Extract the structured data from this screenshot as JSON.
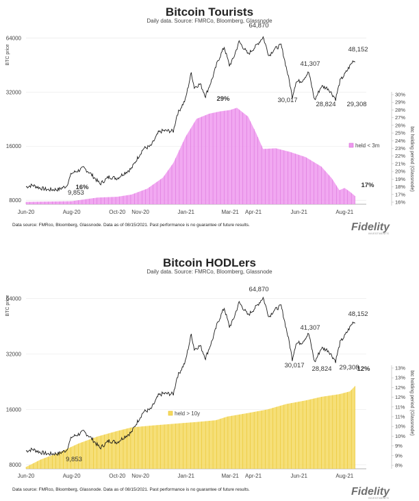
{
  "logo": {
    "text": "Fidelity",
    "subtext": "INVESTMENTS"
  },
  "chart_data": [
    {
      "type": "line",
      "title": "Bitcoin Tourists",
      "subtitle": "Daily data.  Source: FMRCo, Bloomberg, Glassnode",
      "ylabel": "BTC price",
      "y2label": "btc holding period (Glassnode)",
      "footnote": "Data source: FMRco, Bloomberg, Glassnode. Data as of 08/15/2021. Past performance is no guarantee of future results.",
      "y_scale": "log",
      "ylim": [
        7600,
        72000
      ],
      "y_ticks": [
        "8000",
        "16000",
        "32000",
        "64000"
      ],
      "y2lim": [
        15.7,
        30.8
      ],
      "y2_ticks": [
        "16%",
        "17%",
        "18%",
        "19%",
        "20%",
        "21%",
        "22%",
        "23%",
        "24%",
        "25%",
        "26%",
        "27%",
        "28%",
        "29%",
        "30%"
      ],
      "x_labels": [
        "Jun-20",
        "Aug-20",
        "Oct-20",
        "Nov-20",
        "Jan-21",
        "Mar-21",
        "Apr-21",
        "Jun-21",
        "Aug-21"
      ],
      "annotations": [
        "64,870",
        "41,307",
        "48,152",
        "30,017",
        "28,824",
        "29,308",
        "9,853",
        "29%",
        "17%",
        "16%"
      ],
      "legend": {
        "label": "held < 3m",
        "position": "right"
      },
      "colors": {
        "bars": "#ee99ee",
        "bars_edge": "#d86ad8",
        "line": "#1a1a1a",
        "label": "#e070e0"
      },
      "series": [
        {
          "name": "BTC price",
          "kind": "line",
          "points": [
            [
              "2020-06-01",
              9500
            ],
            [
              "2020-06-10",
              9700
            ],
            [
              "2020-06-20",
              9350
            ],
            [
              "2020-07-01",
              9150
            ],
            [
              "2020-07-15",
              9200
            ],
            [
              "2020-07-25",
              9600
            ],
            [
              "2020-08-01",
              11300
            ],
            [
              "2020-08-10",
              11700
            ],
            [
              "2020-08-17",
              12100
            ],
            [
              "2020-08-25",
              11400
            ],
            [
              "2020-09-03",
              10400
            ],
            [
              "2020-09-08",
              9853
            ],
            [
              "2020-09-20",
              10800
            ],
            [
              "2020-10-01",
              10600
            ],
            [
              "2020-10-10",
              11300
            ],
            [
              "2020-10-20",
              12000
            ],
            [
              "2020-10-27",
              13500
            ],
            [
              "2020-11-05",
              15500
            ],
            [
              "2020-11-15",
              16000
            ],
            [
              "2020-11-25",
              19000
            ],
            [
              "2020-12-01",
              19500
            ],
            [
              "2020-12-15",
              19400
            ],
            [
              "2020-12-20",
              24000
            ],
            [
              "2020-12-31",
              29000
            ],
            [
              "2021-01-08",
              41000
            ],
            [
              "2021-01-12",
              34000
            ],
            [
              "2021-01-20",
              35500
            ],
            [
              "2021-01-27",
              30400
            ],
            [
              "2021-02-05",
              38000
            ],
            [
              "2021-02-12",
              47000
            ],
            [
              "2021-02-21",
              57000
            ],
            [
              "2021-02-28",
              45000
            ],
            [
              "2021-03-05",
              49000
            ],
            [
              "2021-03-13",
              61000
            ],
            [
              "2021-03-25",
              52000
            ],
            [
              "2021-04-05",
              58000
            ],
            [
              "2021-04-14",
              64870
            ],
            [
              "2021-04-22",
              51000
            ],
            [
              "2021-04-28",
              55000
            ],
            [
              "2021-05-08",
              58500
            ],
            [
              "2021-05-12",
              50000
            ],
            [
              "2021-05-19",
              37000
            ],
            [
              "2021-05-23",
              30017
            ],
            [
              "2021-05-28",
              36500
            ],
            [
              "2021-06-05",
              37000
            ],
            [
              "2021-06-14",
              41307
            ],
            [
              "2021-06-22",
              28824
            ],
            [
              "2021-07-01",
              34500
            ],
            [
              "2021-07-10",
              33500
            ],
            [
              "2021-07-20",
              29308
            ],
            [
              "2021-07-26",
              37000
            ],
            [
              "2021-08-01",
              40000
            ],
            [
              "2021-08-07",
              44000
            ],
            [
              "2021-08-13",
              48152
            ],
            [
              "2021-08-15",
              47000
            ]
          ]
        },
        {
          "name": "held < 3m",
          "kind": "bars",
          "axis": "right",
          "points": [
            [
              "2020-06-01",
              16.2
            ],
            [
              "2020-08-01",
              16.3
            ],
            [
              "2020-09-05",
              16.8
            ],
            [
              "2020-10-01",
              16.9
            ],
            [
              "2020-10-20",
              17.2
            ],
            [
              "2020-11-10",
              18.0
            ],
            [
              "2020-12-01",
              19.5
            ],
            [
              "2020-12-15",
              21.5
            ],
            [
              "2020-12-31",
              25.0
            ],
            [
              "2021-01-15",
              27.5
            ],
            [
              "2021-02-01",
              28.2
            ],
            [
              "2021-02-15",
              28.5
            ],
            [
              "2021-03-01",
              28.7
            ],
            [
              "2021-03-10",
              29.0
            ],
            [
              "2021-03-25",
              27.8
            ],
            [
              "2021-04-05",
              25.5
            ],
            [
              "2021-04-14",
              23.4
            ],
            [
              "2021-05-01",
              23.5
            ],
            [
              "2021-05-20",
              23.0
            ],
            [
              "2021-06-10",
              22.3
            ],
            [
              "2021-07-01",
              21.0
            ],
            [
              "2021-07-15",
              19.4
            ],
            [
              "2021-07-25",
              17.8
            ],
            [
              "2021-08-01",
              18.1
            ],
            [
              "2021-08-08",
              17.6
            ],
            [
              "2021-08-15",
              17.0
            ]
          ]
        }
      ]
    },
    {
      "type": "line",
      "title": "Bitcoin HODLers",
      "subtitle": "Daily data.  Source: FMRCo, Bloomberg, Glassnode",
      "ylabel": "BTC price",
      "y2label": "btc holding period (Glassnode)",
      "footnote": "Data source: FMRco, Bloomberg, Glassnode. Data as of 08/15/2021. Past performance is no guarantee of future results.",
      "y_scale": "log",
      "ylim": [
        7600,
        72000
      ],
      "y_ticks": [
        "8000",
        "16000",
        "32000",
        "64000"
      ],
      "y2lim": [
        7.7,
        13.3
      ],
      "y2_ticks": [
        "8%",
        "9%",
        "9%",
        "10%",
        "10%",
        "11%",
        "11%",
        "12%",
        "12%",
        "13%",
        "13%"
      ],
      "x_labels": [
        "Jun-20",
        "Aug-20",
        "Oct-20",
        "Nov-20",
        "Jan-21",
        "Mar-21",
        "Apr-21",
        "Jun-21",
        "Aug-21"
      ],
      "annotations": [
        "64,870",
        "41,307",
        "48,152",
        "30,017",
        "28,824",
        "29,308",
        "9,853",
        "12%"
      ],
      "legend": {
        "label": "held > 10y",
        "position": "center"
      },
      "colors": {
        "bars": "#f5d960",
        "bars_edge": "#e6bf1e",
        "line": "#1a1a1a",
        "label": "#e8b800"
      },
      "series": [
        {
          "name": "BTC price",
          "kind": "line",
          "points": [
            [
              "2020-06-01",
              9500
            ],
            [
              "2020-06-10",
              9700
            ],
            [
              "2020-06-20",
              9350
            ],
            [
              "2020-07-01",
              9150
            ],
            [
              "2020-07-15",
              9200
            ],
            [
              "2020-07-25",
              9600
            ],
            [
              "2020-08-01",
              11300
            ],
            [
              "2020-08-10",
              11700
            ],
            [
              "2020-08-17",
              12100
            ],
            [
              "2020-08-25",
              11400
            ],
            [
              "2020-09-03",
              10400
            ],
            [
              "2020-09-08",
              9853
            ],
            [
              "2020-09-20",
              10800
            ],
            [
              "2020-10-01",
              10600
            ],
            [
              "2020-10-10",
              11300
            ],
            [
              "2020-10-20",
              12000
            ],
            [
              "2020-10-27",
              13500
            ],
            [
              "2020-11-05",
              15500
            ],
            [
              "2020-11-15",
              16000
            ],
            [
              "2020-11-25",
              19000
            ],
            [
              "2020-12-01",
              19500
            ],
            [
              "2020-12-15",
              19400
            ],
            [
              "2020-12-20",
              24000
            ],
            [
              "2020-12-31",
              29000
            ],
            [
              "2021-01-08",
              41000
            ],
            [
              "2021-01-12",
              34000
            ],
            [
              "2021-01-20",
              35500
            ],
            [
              "2021-01-27",
              30400
            ],
            [
              "2021-02-05",
              38000
            ],
            [
              "2021-02-12",
              47000
            ],
            [
              "2021-02-21",
              57000
            ],
            [
              "2021-02-28",
              45000
            ],
            [
              "2021-03-05",
              49000
            ],
            [
              "2021-03-13",
              61000
            ],
            [
              "2021-03-25",
              52000
            ],
            [
              "2021-04-05",
              58000
            ],
            [
              "2021-04-14",
              64870
            ],
            [
              "2021-04-22",
              51000
            ],
            [
              "2021-04-28",
              55000
            ],
            [
              "2021-05-08",
              58500
            ],
            [
              "2021-05-12",
              50000
            ],
            [
              "2021-05-19",
              37000
            ],
            [
              "2021-05-23",
              30017
            ],
            [
              "2021-05-28",
              36500
            ],
            [
              "2021-06-05",
              37000
            ],
            [
              "2021-06-14",
              41307
            ],
            [
              "2021-06-22",
              28824
            ],
            [
              "2021-07-01",
              34500
            ],
            [
              "2021-07-10",
              33500
            ],
            [
              "2021-07-20",
              29308
            ],
            [
              "2021-07-26",
              37000
            ],
            [
              "2021-08-01",
              40000
            ],
            [
              "2021-08-07",
              44000
            ],
            [
              "2021-08-13",
              48152
            ],
            [
              "2021-08-15",
              47000
            ]
          ]
        },
        {
          "name": "held > 10y",
          "kind": "bars",
          "axis": "right",
          "points": [
            [
              "2020-06-01",
              7.8
            ],
            [
              "2020-06-20",
              8.2
            ],
            [
              "2020-07-15",
              8.6
            ],
            [
              "2020-08-10",
              9.1
            ],
            [
              "2020-09-05",
              9.5
            ],
            [
              "2020-10-01",
              9.8
            ],
            [
              "2020-10-20",
              10.0
            ],
            [
              "2020-11-15",
              10.1
            ],
            [
              "2020-12-15",
              10.2
            ],
            [
              "2021-01-15",
              10.3
            ],
            [
              "2021-02-10",
              10.4
            ],
            [
              "2021-02-25",
              10.6
            ],
            [
              "2021-03-25",
              10.8
            ],
            [
              "2021-04-20",
              11.0
            ],
            [
              "2021-05-15",
              11.3
            ],
            [
              "2021-06-10",
              11.5
            ],
            [
              "2021-07-01",
              11.7
            ],
            [
              "2021-07-25",
              11.85
            ],
            [
              "2021-08-08",
              12.0
            ],
            [
              "2021-08-15",
              12.3
            ]
          ]
        }
      ]
    }
  ]
}
